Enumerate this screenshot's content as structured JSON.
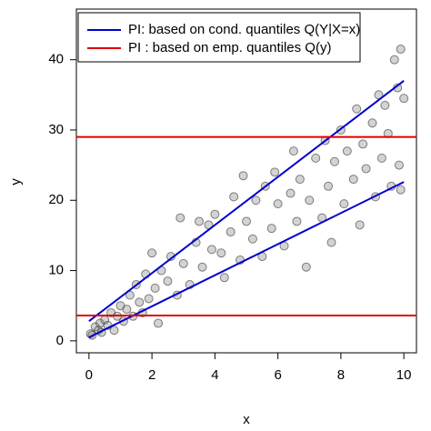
{
  "chart_data": {
    "type": "scatter",
    "x_label": "x",
    "y_label": "y",
    "xlim": [
      -0.4,
      10.4
    ],
    "ylim": [
      -1.7,
      47.2
    ],
    "xticks": [
      0,
      2,
      4,
      6,
      8,
      10
    ],
    "yticks": [
      0,
      10,
      20,
      30,
      40
    ],
    "points": {
      "color": "#808080",
      "x": [
        0.05,
        0.1,
        0.2,
        0.3,
        0.35,
        0.4,
        0.5,
        0.6,
        0.7,
        0.8,
        0.9,
        1.0,
        1.1,
        1.2,
        1.3,
        1.4,
        1.5,
        1.6,
        1.7,
        1.8,
        1.9,
        2.0,
        2.1,
        2.2,
        2.3,
        2.5,
        2.6,
        2.8,
        2.9,
        3.0,
        3.2,
        3.4,
        3.5,
        3.6,
        3.8,
        3.9,
        4.0,
        4.2,
        4.3,
        4.5,
        4.6,
        4.8,
        4.9,
        5.0,
        5.2,
        5.3,
        5.5,
        5.6,
        5.8,
        5.9,
        6.0,
        6.2,
        6.4,
        6.5,
        6.6,
        6.7,
        6.9,
        7.0,
        7.2,
        7.4,
        7.5,
        7.6,
        7.7,
        7.8,
        8.0,
        8.1,
        8.2,
        8.4,
        8.5,
        8.6,
        8.7,
        8.8,
        9.0,
        9.1,
        9.2,
        9.3,
        9.4,
        9.5,
        9.6,
        9.7,
        9.8,
        9.9,
        9.9,
        10.0,
        9.85
      ],
      "y": [
        1.0,
        0.8,
        2.0,
        1.5,
        2.5,
        1.2,
        3.0,
        2.2,
        4.0,
        1.5,
        3.5,
        5.0,
        2.8,
        4.5,
        6.5,
        3.5,
        8.0,
        5.5,
        4.0,
        9.5,
        6.0,
        12.5,
        7.5,
        2.5,
        10.0,
        8.5,
        12.0,
        6.5,
        17.5,
        11.0,
        8.0,
        14.0,
        17.0,
        10.5,
        16.5,
        13.0,
        18.0,
        12.5,
        9.0,
        15.5,
        20.5,
        11.5,
        23.5,
        17.0,
        14.5,
        20.0,
        12.0,
        22.0,
        16.0,
        24.0,
        19.5,
        13.5,
        21.0,
        27.0,
        17.0,
        23.0,
        10.5,
        20.0,
        26.0,
        17.5,
        28.5,
        22.0,
        14.0,
        25.5,
        30.0,
        19.5,
        27.0,
        23.0,
        33.0,
        16.5,
        28.0,
        24.5,
        31.0,
        20.5,
        35.0,
        26.0,
        33.5,
        29.5,
        22.0,
        40.0,
        36.0,
        41.5,
        21.5,
        34.5,
        25.0
      ]
    },
    "series": [
      {
        "name": "PI: based on cond. quantiles Q(Y|X=x)",
        "color": "#0000cc",
        "lines": [
          {
            "x": [
              0,
              10
            ],
            "y": [
              2.8,
              37
            ]
          },
          {
            "x": [
              0,
              10
            ],
            "y": [
              0.5,
              22.6
            ]
          }
        ]
      },
      {
        "name": "PI : based on emp. quantiles Q(y)",
        "color": "#dd0000",
        "hlines": [
          29,
          3.6
        ]
      }
    ]
  }
}
